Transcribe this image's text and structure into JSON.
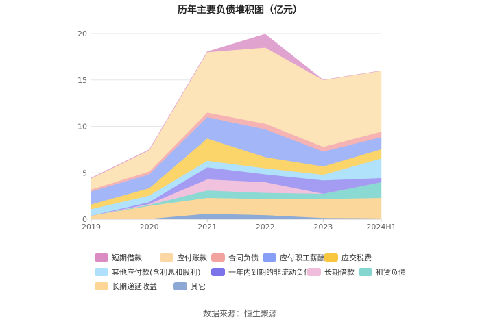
{
  "chart_data": {
    "type": "area",
    "stacked": true,
    "title": "历年主要负债堆积图（亿元）",
    "categories": [
      "2019",
      "2020",
      "2021",
      "2022",
      "2023",
      "2024H1"
    ],
    "ylim": [
      0,
      20
    ],
    "yticks": [
      0,
      5,
      10,
      15,
      20
    ],
    "grid": true,
    "legend_position": "bottom",
    "series": [
      {
        "name": "其它",
        "color": "#8caad6",
        "values": [
          0.0,
          0.05,
          0.6,
          0.45,
          0.15,
          0.1
        ]
      },
      {
        "name": "长期递延收益",
        "color": "#fcd79b",
        "values": [
          0.4,
          1.4,
          1.7,
          1.75,
          2.05,
          2.2
        ]
      },
      {
        "name": "租赁负债",
        "color": "#8ad9d2",
        "values": [
          0.0,
          0.1,
          0.8,
          0.65,
          0.55,
          1.7
        ]
      },
      {
        "name": "长期借款",
        "color": "#f1c2de",
        "values": [
          0.0,
          0.1,
          1.2,
          1.15,
          0.0,
          0.0
        ]
      },
      {
        "name": "一年内到期的非流动负债",
        "color": "#a49cf2",
        "values": [
          0.0,
          0.2,
          1.3,
          0.85,
          1.45,
          0.45
        ]
      },
      {
        "name": "其他应付款(含利息和股利)",
        "color": "#b0e2fb",
        "values": [
          0.7,
          0.7,
          0.7,
          0.65,
          0.6,
          2.1
        ]
      },
      {
        "name": "应交税费",
        "color": "#fbd46a",
        "values": [
          0.5,
          0.8,
          2.4,
          1.2,
          0.9,
          1.0
        ]
      },
      {
        "name": "应付职工薪酬",
        "color": "#a3b6f7",
        "values": [
          1.4,
          1.5,
          2.3,
          3.0,
          1.6,
          1.3
        ]
      },
      {
        "name": "合同负债",
        "color": "#f6b3b3",
        "values": [
          0.2,
          0.3,
          0.5,
          0.6,
          0.5,
          0.6
        ]
      },
      {
        "name": "应付账款",
        "color": "#fde3b8",
        "values": [
          1.2,
          2.3,
          6.5,
          8.2,
          7.2,
          6.55
        ]
      },
      {
        "name": "短期借款",
        "color": "#e0a2cf",
        "values": [
          0.05,
          0.05,
          0.05,
          1.45,
          0.0,
          0.0
        ]
      }
    ],
    "legend_order": [
      "短期借款",
      "应付账款",
      "合同负债",
      "应付职工薪酬",
      "应交税费",
      "其他应付款(含利息和股利)",
      "一年内到期的非流动负债",
      "长期借款",
      "租赁负债",
      "长期递延收益",
      "其它"
    ],
    "legend_colors": {
      "短期借款": "#d98bc2",
      "应付账款": "#fbd8a3",
      "合同负债": "#f3a39f",
      "应付职工薪酬": "#869ef5",
      "应交税费": "#f9c640",
      "其他应付款(含利息和股利)": "#aee0fb",
      "一年内到期的非流动负债": "#7c72ea",
      "长期借款": "#efbcdb",
      "租赁负债": "#86d6d0",
      "长期递延收益": "#fdd597",
      "其它": "#8ea8d6"
    }
  },
  "source": "数据来源：恒生聚源"
}
